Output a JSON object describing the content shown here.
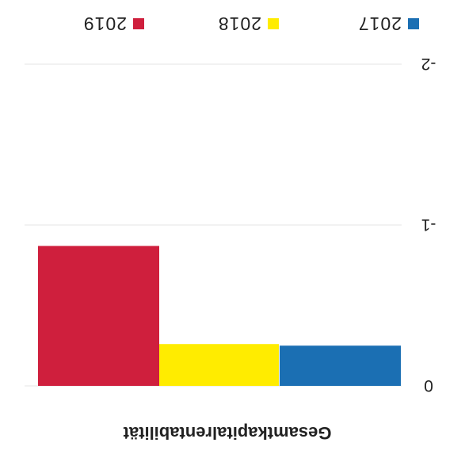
{
  "chart_data": {
    "type": "bar",
    "title": "",
    "xlabel": "Gesamtkapitalrentabilität",
    "ylabel": "",
    "categories": [
      "Gesamtkapitalrentabilität"
    ],
    "series": [
      {
        "name": "2017",
        "values": [
          -0.25
        ],
        "color": "#1b6fb3"
      },
      {
        "name": "2018",
        "values": [
          -0.26
        ],
        "color": "#ffec00"
      },
      {
        "name": "2019",
        "values": [
          -0.87
        ],
        "color": "#cf1f3d"
      }
    ],
    "ylim": [
      -2,
      0
    ],
    "yticks": [
      {
        "value": 0,
        "label": "0"
      },
      {
        "value": -1,
        "label": "-1"
      },
      {
        "value": -2,
        "label": "-2"
      }
    ],
    "grid": true,
    "legend_position": "top",
    "orientation": "rotated 180 degrees"
  }
}
